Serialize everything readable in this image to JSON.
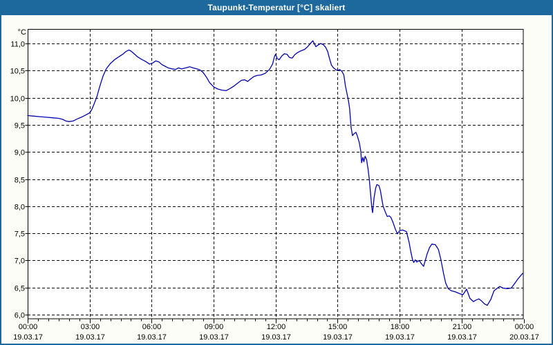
{
  "window": {
    "title": "Taupunkt-Temperatur [°C] skaliert"
  },
  "colors": {
    "titlebar_bg": "#1d699e",
    "titlebar_text": "#ffffff",
    "window_border": "#1d699e",
    "content_bg": "#fcfdf7",
    "plot_bg": "#ffffff",
    "grid_color": "#000000",
    "axis_color": "#000000",
    "line_color": "#0000b2"
  },
  "chart_data": {
    "type": "line",
    "title": "Taupunkt-Temperatur [°C] skaliert",
    "xlabel": "",
    "ylabel": "°C",
    "ylim": [
      5.9,
      11.3
    ],
    "xlim_hours": [
      0,
      24
    ],
    "grid": true,
    "legend_position": "none",
    "y_ticks": [
      {
        "value": 11.0,
        "label": "11,0"
      },
      {
        "value": 10.5,
        "label": "10,5"
      },
      {
        "value": 10.0,
        "label": "10,0"
      },
      {
        "value": 9.5,
        "label": "9,5"
      },
      {
        "value": 9.0,
        "label": "9,0"
      },
      {
        "value": 8.5,
        "label": "8,5"
      },
      {
        "value": 8.0,
        "label": "8,0"
      },
      {
        "value": 7.5,
        "label": "7,5"
      },
      {
        "value": 7.0,
        "label": "7,0"
      },
      {
        "value": 6.5,
        "label": "6,5"
      },
      {
        "value": 6.0,
        "label": "6,0"
      }
    ],
    "x_ticks": [
      {
        "hour": 0,
        "time": "00:00",
        "date": "19.03.17"
      },
      {
        "hour": 3,
        "time": "03:00",
        "date": "19.03.17"
      },
      {
        "hour": 6,
        "time": "06:00",
        "date": "19.03.17"
      },
      {
        "hour": 9,
        "time": "09:00",
        "date": "19.03.17"
      },
      {
        "hour": 12,
        "time": "12:00",
        "date": "19.03.17"
      },
      {
        "hour": 15,
        "time": "15:00",
        "date": "19.03.17"
      },
      {
        "hour": 18,
        "time": "18:00",
        "date": "19.03.17"
      },
      {
        "hour": 21,
        "time": "21:00",
        "date": "19.03.17"
      },
      {
        "hour": 24,
        "time": "00:00",
        "date": "20.03.17"
      }
    ],
    "minor_x_tick_step_hours": 0.5,
    "series": [
      {
        "name": "Taupunkt-Temperatur",
        "unit": "°C",
        "color": "#0000b2",
        "points": [
          [
            0.0,
            9.67
          ],
          [
            0.3,
            9.66
          ],
          [
            0.6,
            9.65
          ],
          [
            0.9,
            9.64
          ],
          [
            1.2,
            9.63
          ],
          [
            1.5,
            9.62
          ],
          [
            1.7,
            9.6
          ],
          [
            1.85,
            9.57
          ],
          [
            2.0,
            9.56
          ],
          [
            2.2,
            9.57
          ],
          [
            2.4,
            9.61
          ],
          [
            2.6,
            9.64
          ],
          [
            2.8,
            9.68
          ],
          [
            3.0,
            9.72
          ],
          [
            3.1,
            9.78
          ],
          [
            3.2,
            9.87
          ],
          [
            3.35,
            10.02
          ],
          [
            3.5,
            10.22
          ],
          [
            3.65,
            10.4
          ],
          [
            3.8,
            10.53
          ],
          [
            4.0,
            10.63
          ],
          [
            4.2,
            10.7
          ],
          [
            4.4,
            10.75
          ],
          [
            4.6,
            10.8
          ],
          [
            4.75,
            10.85
          ],
          [
            4.9,
            10.88
          ],
          [
            5.0,
            10.86
          ],
          [
            5.15,
            10.81
          ],
          [
            5.3,
            10.76
          ],
          [
            5.5,
            10.71
          ],
          [
            5.7,
            10.67
          ],
          [
            5.9,
            10.62
          ],
          [
            6.05,
            10.64
          ],
          [
            6.2,
            10.68
          ],
          [
            6.35,
            10.66
          ],
          [
            6.5,
            10.61
          ],
          [
            6.65,
            10.58
          ],
          [
            6.8,
            10.55
          ],
          [
            7.0,
            10.53
          ],
          [
            7.15,
            10.52
          ],
          [
            7.3,
            10.55
          ],
          [
            7.45,
            10.53
          ],
          [
            7.65,
            10.55
          ],
          [
            7.85,
            10.57
          ],
          [
            8.0,
            10.55
          ],
          [
            8.2,
            10.53
          ],
          [
            8.35,
            10.51
          ],
          [
            8.5,
            10.46
          ],
          [
            8.65,
            10.38
          ],
          [
            8.8,
            10.28
          ],
          [
            9.0,
            10.2
          ],
          [
            9.2,
            10.16
          ],
          [
            9.4,
            10.14
          ],
          [
            9.6,
            10.13
          ],
          [
            9.8,
            10.17
          ],
          [
            10.0,
            10.22
          ],
          [
            10.2,
            10.28
          ],
          [
            10.35,
            10.32
          ],
          [
            10.5,
            10.33
          ],
          [
            10.65,
            10.3
          ],
          [
            10.8,
            10.35
          ],
          [
            10.95,
            10.39
          ],
          [
            11.1,
            10.41
          ],
          [
            11.3,
            10.42
          ],
          [
            11.5,
            10.45
          ],
          [
            11.7,
            10.52
          ],
          [
            11.85,
            10.62
          ],
          [
            11.95,
            10.77
          ],
          [
            12.0,
            10.8
          ],
          [
            12.08,
            10.72
          ],
          [
            12.17,
            10.7
          ],
          [
            12.3,
            10.77
          ],
          [
            12.42,
            10.81
          ],
          [
            12.55,
            10.8
          ],
          [
            12.67,
            10.74
          ],
          [
            12.8,
            10.73
          ],
          [
            12.92,
            10.79
          ],
          [
            13.05,
            10.83
          ],
          [
            13.2,
            10.86
          ],
          [
            13.4,
            10.89
          ],
          [
            13.55,
            10.94
          ],
          [
            13.68,
            11.0
          ],
          [
            13.8,
            11.05
          ],
          [
            13.88,
            10.99
          ],
          [
            13.95,
            10.94
          ],
          [
            14.05,
            10.97
          ],
          [
            14.18,
            11.0
          ],
          [
            14.3,
            10.98
          ],
          [
            14.42,
            10.93
          ],
          [
            14.52,
            10.85
          ],
          [
            14.6,
            10.73
          ],
          [
            14.7,
            10.6
          ],
          [
            14.8,
            10.55
          ],
          [
            14.9,
            10.52
          ],
          [
            15.0,
            10.5
          ],
          [
            15.1,
            10.52
          ],
          [
            15.2,
            10.49
          ],
          [
            15.3,
            10.42
          ],
          [
            15.38,
            10.21
          ],
          [
            15.45,
            10.08
          ],
          [
            15.52,
            9.95
          ],
          [
            15.58,
            9.8
          ],
          [
            15.65,
            9.45
          ],
          [
            15.72,
            9.3
          ],
          [
            15.8,
            9.34
          ],
          [
            15.89,
            9.36
          ],
          [
            15.95,
            9.3
          ],
          [
            16.05,
            9.17
          ],
          [
            16.12,
            9.02
          ],
          [
            16.16,
            8.8
          ],
          [
            16.22,
            8.9
          ],
          [
            16.27,
            8.82
          ],
          [
            16.33,
            8.92
          ],
          [
            16.4,
            8.86
          ],
          [
            16.47,
            8.69
          ],
          [
            16.53,
            8.5
          ],
          [
            16.6,
            8.2
          ],
          [
            16.65,
            7.98
          ],
          [
            16.69,
            7.88
          ],
          [
            16.76,
            8.15
          ],
          [
            16.84,
            8.33
          ],
          [
            16.9,
            8.4
          ],
          [
            17.0,
            8.38
          ],
          [
            17.07,
            8.29
          ],
          [
            17.13,
            8.15
          ],
          [
            17.2,
            8.0
          ],
          [
            17.3,
            7.9
          ],
          [
            17.4,
            7.81
          ],
          [
            17.5,
            7.82
          ],
          [
            17.58,
            7.79
          ],
          [
            17.68,
            7.7
          ],
          [
            17.8,
            7.57
          ],
          [
            17.9,
            7.49
          ],
          [
            18.0,
            7.55
          ],
          [
            18.15,
            7.56
          ],
          [
            18.33,
            7.53
          ],
          [
            18.46,
            7.33
          ],
          [
            18.54,
            7.16
          ],
          [
            18.62,
            7.02
          ],
          [
            18.68,
            6.96
          ],
          [
            18.76,
            7.01
          ],
          [
            18.83,
            6.97
          ],
          [
            18.95,
            7.0
          ],
          [
            19.05,
            6.94
          ],
          [
            19.16,
            6.89
          ],
          [
            19.33,
            7.12
          ],
          [
            19.45,
            7.24
          ],
          [
            19.56,
            7.3
          ],
          [
            19.73,
            7.29
          ],
          [
            19.88,
            7.2
          ],
          [
            20.0,
            7.01
          ],
          [
            20.13,
            6.75
          ],
          [
            20.23,
            6.58
          ],
          [
            20.35,
            6.48
          ],
          [
            20.5,
            6.44
          ],
          [
            20.7,
            6.42
          ],
          [
            20.95,
            6.38
          ],
          [
            21.07,
            6.37
          ],
          [
            21.24,
            6.47
          ],
          [
            21.4,
            6.3
          ],
          [
            21.57,
            6.24
          ],
          [
            21.7,
            6.27
          ],
          [
            21.84,
            6.29
          ],
          [
            21.97,
            6.25
          ],
          [
            22.1,
            6.2
          ],
          [
            22.24,
            6.17
          ],
          [
            22.41,
            6.28
          ],
          [
            22.57,
            6.44
          ],
          [
            22.84,
            6.52
          ],
          [
            23.0,
            6.49
          ],
          [
            23.2,
            6.48
          ],
          [
            23.4,
            6.49
          ],
          [
            23.58,
            6.58
          ],
          [
            23.75,
            6.67
          ],
          [
            23.95,
            6.76
          ]
        ]
      }
    ]
  }
}
